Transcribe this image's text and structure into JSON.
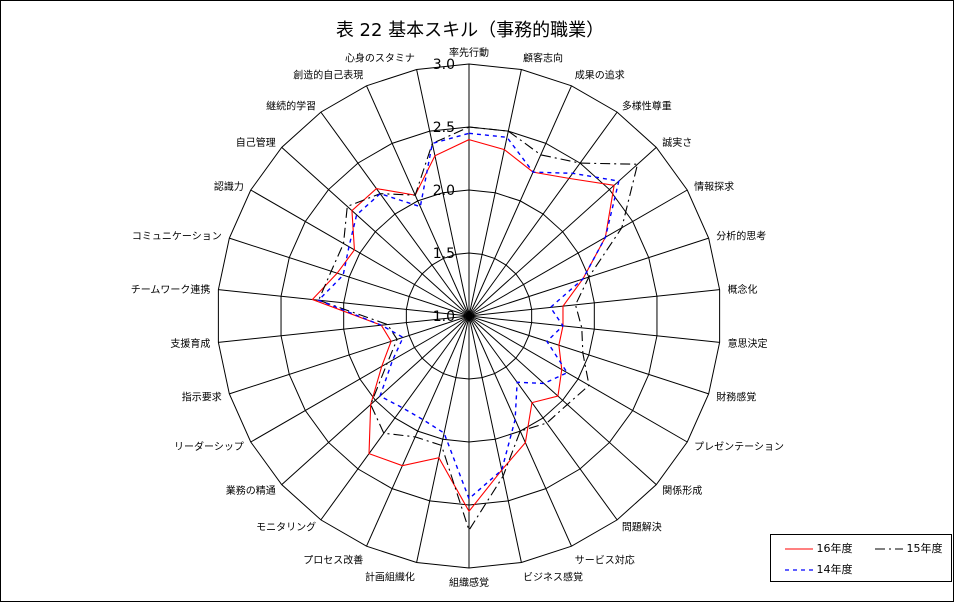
{
  "chart_data": {
    "type": "radar",
    "title": "表 22 基本スキル（事務的職業）",
    "categories": [
      "率先行動",
      "顧客志向",
      "成果の追求",
      "多様性尊重",
      "誠実さ",
      "情報探求",
      "分析的思考",
      "概念化",
      "意思決定",
      "財務感覚",
      "プレゼンテーション",
      "関係形成",
      "問題解決",
      "サービス対応",
      "ビジネス感覚",
      "組織感覚",
      "計画組織化",
      "プロセス改善",
      "モニタリング",
      "業務の精通",
      "リーダーシップ",
      "指示要求",
      "支援育成",
      "チームワーク連携",
      "コミュニケーション",
      "認識力",
      "自己管理",
      "継続的学習",
      "創造的自己表現",
      "心身のスタミナ"
    ],
    "rlim": [
      1.0,
      3.0
    ],
    "ticks": [
      1.0,
      1.5,
      2.0,
      2.5,
      3.0
    ],
    "tick_labels": [
      "1.0",
      "1.5",
      "2.0",
      "2.5",
      "3.0"
    ],
    "legend_position": "bottom-right",
    "series": [
      {
        "name": "16年度",
        "color": "#ff0000",
        "dash": "none",
        "values": [
          2.4,
          2.35,
          2.25,
          2.35,
          2.55,
          2.25,
          1.95,
          1.75,
          1.75,
          1.75,
          1.85,
          1.95,
          1.85,
          2.1,
          2.25,
          2.55,
          2.15,
          2.3,
          2.35,
          2.05,
          1.8,
          1.65,
          1.7,
          2.25,
          2.1,
          2.05,
          2.25,
          2.25,
          2.05,
          2.3
        ]
      },
      {
        "name": "15年度",
        "color": "#000000",
        "dash": "10,4,2,4",
        "values": [
          2.5,
          2.5,
          2.4,
          2.5,
          2.8,
          2.4,
          2.0,
          1.85,
          1.9,
          1.95,
          2.1,
          2.05,
          2.05,
          2.0,
          2.3,
          2.7,
          2.05,
          2.05,
          2.15,
          2.05,
          1.75,
          1.6,
          1.65,
          2.2,
          2.15,
          2.15,
          2.3,
          2.2,
          2.05,
          2.4
        ]
      },
      {
        "name": "14年度",
        "color": "#0000ff",
        "dash": "4,4",
        "values": [
          2.45,
          2.45,
          2.25,
          2.4,
          2.6,
          2.25,
          1.95,
          1.65,
          1.75,
          1.65,
          1.9,
          1.8,
          1.65,
          1.9,
          2.25,
          2.45,
          1.95,
          1.9,
          1.9,
          1.95,
          1.7,
          1.55,
          1.7,
          2.2,
          2.05,
          2.1,
          2.2,
          2.2,
          1.95,
          2.4
        ]
      }
    ]
  }
}
